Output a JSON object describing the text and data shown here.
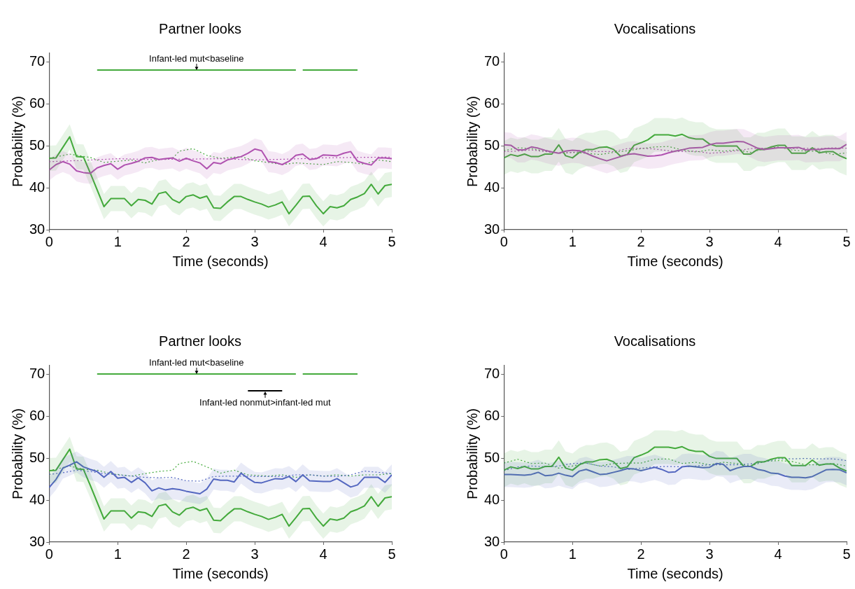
{
  "chart_data": [
    {
      "type": "line",
      "title": "Partner looks",
      "xlabel": "Time (seconds)",
      "ylabel": "Probability (%)",
      "marker": "none",
      "xlim": [
        0,
        5
      ],
      "ylim": [
        30,
        72
      ],
      "xticks": [
        0,
        1,
        2,
        3,
        4,
        5
      ],
      "yticks": [
        30,
        40,
        50,
        60,
        70
      ],
      "x": [
        0,
        0.1,
        0.2,
        0.3,
        0.4,
        0.5,
        0.6,
        0.7,
        0.8,
        0.9,
        1,
        1.1,
        1.2,
        1.3,
        1.4,
        1.5,
        1.6,
        1.7,
        1.8,
        1.9,
        2,
        2.1,
        2.2,
        2.3,
        2.4,
        2.5,
        2.6,
        2.7,
        2.8,
        2.9,
        3,
        3.1,
        3.2,
        3.3,
        3.4,
        3.5,
        3.6,
        3.7,
        3.8,
        3.9,
        4,
        4.1,
        4.2,
        4.3,
        4.4,
        4.5,
        4.6,
        4.7,
        4.8,
        4.9,
        5
      ],
      "series": [
        {
          "type": "line",
          "color": "#b052b0",
          "line_style": "solid",
          "values": [
            44.2,
            45.5,
            46.2,
            45.6,
            44.0,
            43.6,
            43.4,
            44.7,
            45.3,
            45.7,
            44.4,
            45.4,
            45.8,
            46.3,
            47.1,
            47.2,
            46.7,
            46.9,
            47.1,
            46.3,
            47.0,
            46.4,
            45.9,
            44.5,
            46.0,
            45.7,
            46.6,
            47.0,
            47.4,
            48.2,
            49.2,
            48.8,
            46.2,
            46.0,
            45.5,
            46.3,
            47.7,
            48.0,
            46.7,
            46.9,
            47.8,
            47.7,
            47.6,
            48.2,
            48.6,
            46.3,
            45.8,
            45.4,
            47.1,
            47.1,
            46.9
          ],
          "lower": [
            41.7,
            43.0,
            43.7,
            43.1,
            41.5,
            41.1,
            40.9,
            42.2,
            42.8,
            43.2,
            41.9,
            42.9,
            43.3,
            43.8,
            44.6,
            44.7,
            44.2,
            44.4,
            44.6,
            43.8,
            44.5,
            43.9,
            43.4,
            42.0,
            43.5,
            43.2,
            44.1,
            44.5,
            44.9,
            45.7,
            46.7,
            46.3,
            43.7,
            43.5,
            43.0,
            43.8,
            45.2,
            45.5,
            44.2,
            44.4,
            45.3,
            45.2,
            45.1,
            45.7,
            46.1,
            43.8,
            43.3,
            42.9,
            44.6,
            44.6,
            44.4
          ],
          "upper": [
            46.7,
            48.0,
            48.7,
            48.1,
            46.5,
            46.1,
            45.9,
            47.2,
            47.8,
            48.2,
            46.9,
            47.9,
            48.3,
            48.8,
            49.6,
            49.7,
            49.2,
            49.4,
            49.6,
            48.8,
            49.5,
            48.9,
            48.4,
            47.0,
            48.5,
            48.2,
            49.1,
            49.5,
            49.9,
            50.7,
            51.7,
            51.3,
            48.7,
            48.5,
            48.0,
            48.8,
            50.2,
            50.5,
            49.2,
            49.4,
            50.3,
            50.2,
            50.1,
            50.7,
            51.1,
            48.8,
            48.3,
            47.9,
            49.6,
            49.6,
            49.4
          ]
        },
        {
          "type": "line",
          "color": "#44aa3c",
          "line_style": "solid",
          "values": [
            47.0,
            47.1,
            49.6,
            52.1,
            47.4,
            47.3,
            43.5,
            39.5,
            35.5,
            37.4,
            37.4,
            37.4,
            35.7,
            37.2,
            37.0,
            36.1,
            38.6,
            39.0,
            37.2,
            36.4,
            37.9,
            38.3,
            37.5,
            38.0,
            35.2,
            35.1,
            36.6,
            37.9,
            37.9,
            37.2,
            36.6,
            36.1,
            35.4,
            35.9,
            36.6,
            33.8,
            35.8,
            37.9,
            38.0,
            35.7,
            33.8,
            35.5,
            35.2,
            35.7,
            37.2,
            37.8,
            38.6,
            40.8,
            38.5,
            40.5,
            40.8
          ],
          "lower": [
            44.0,
            44.1,
            46.6,
            49.1,
            44.4,
            44.3,
            40.5,
            36.5,
            32.5,
            34.4,
            34.4,
            34.4,
            32.7,
            34.2,
            34.0,
            33.1,
            35.6,
            36.0,
            34.2,
            33.4,
            34.9,
            35.3,
            34.5,
            35.0,
            32.2,
            32.1,
            33.6,
            34.9,
            34.9,
            34.2,
            33.6,
            33.1,
            32.4,
            32.9,
            33.6,
            30.8,
            32.8,
            34.9,
            35.0,
            32.7,
            30.8,
            32.5,
            32.2,
            32.7,
            34.2,
            34.8,
            35.6,
            37.8,
            35.5,
            37.5,
            37.8
          ],
          "upper": [
            50.0,
            50.1,
            52.6,
            55.1,
            50.4,
            50.3,
            46.5,
            42.5,
            38.5,
            40.4,
            40.4,
            40.4,
            38.7,
            40.2,
            40.0,
            39.1,
            41.6,
            42.0,
            40.2,
            39.4,
            40.9,
            41.3,
            40.5,
            41.0,
            38.2,
            38.1,
            39.6,
            40.9,
            40.9,
            40.2,
            39.6,
            39.1,
            38.4,
            38.9,
            39.6,
            36.8,
            38.8,
            40.9,
            41.0,
            38.7,
            36.8,
            38.5,
            38.2,
            38.7,
            40.2,
            40.8,
            41.6,
            43.8,
            41.5,
            43.5,
            43.8
          ]
        },
        {
          "type": "line",
          "color": "#b052b0",
          "line_style": "dotted",
          "x": [
            0,
            0.5,
            1,
            1.5,
            2,
            2.5,
            3,
            3.5,
            4,
            4.5,
            5
          ],
          "values": [
            46.2,
            46.5,
            46.9,
            46.7,
            46.8,
            46.9,
            46.6,
            46.8,
            47.1,
            47.2,
            47.3
          ]
        },
        {
          "type": "line",
          "color": "#44aa3c",
          "line_style": "dotted",
          "x": [
            0,
            0.3,
            0.6,
            0.8,
            1.2,
            1.4,
            1.6,
            1.8,
            1.9,
            2.1,
            2.3,
            2.5,
            2.8,
            3,
            3.2,
            3.4,
            3.6,
            3.8,
            4,
            4.2,
            4.4,
            4.6,
            4.8,
            5
          ],
          "values": [
            47.0,
            48.0,
            47.2,
            46.0,
            46.6,
            45.9,
            46.7,
            47.0,
            48.7,
            49.3,
            47.7,
            47.0,
            47.4,
            46.4,
            46.0,
            45.5,
            45.9,
            45.7,
            45.5,
            46.2,
            46.0,
            45.6,
            46.6,
            46.2
          ]
        },
        {
          "type": "line",
          "name": "Infant-led mut<baseline",
          "color": "#44aa3c",
          "line_style": "solid",
          "x": [
            0.7,
            3.6,
            3.65,
            3.7,
            4.5
          ],
          "values": [
            68,
            68,
            null,
            68,
            68
          ]
        }
      ]
    },
    {
      "type": "line",
      "title": "Vocalisations",
      "xlabel": "Time (seconds)",
      "ylabel": "Probability (%)",
      "marker": "none",
      "xlim": [
        0,
        5
      ],
      "ylim": [
        30,
        72
      ],
      "xticks": [
        0,
        1,
        2,
        3,
        4,
        5
      ],
      "yticks": [
        30,
        40,
        50,
        60,
        70
      ],
      "x": [
        0,
        0.1,
        0.2,
        0.3,
        0.4,
        0.5,
        0.6,
        0.7,
        0.8,
        0.9,
        1,
        1.1,
        1.2,
        1.3,
        1.4,
        1.5,
        1.6,
        1.7,
        1.8,
        1.9,
        2,
        2.1,
        2.2,
        2.3,
        2.4,
        2.5,
        2.6,
        2.7,
        2.8,
        2.9,
        3,
        3.1,
        3.2,
        3.3,
        3.4,
        3.5,
        3.6,
        3.7,
        3.8,
        3.9,
        4,
        4.1,
        4.2,
        4.3,
        4.4,
        4.5,
        4.6,
        4.7,
        4.8,
        4.9,
        5
      ],
      "series": [
        {
          "type": "line",
          "color": "#b052b0",
          "line_style": "solid",
          "values": [
            50.2,
            50.1,
            49.0,
            49.0,
            49.7,
            49.4,
            48.9,
            48.5,
            48.2,
            48.7,
            48.9,
            48.8,
            48.2,
            47.5,
            46.9,
            46.4,
            46.9,
            47.4,
            47.9,
            48.1,
            47.8,
            47.5,
            47.6,
            47.8,
            48.3,
            48.7,
            49.0,
            49.4,
            49.5,
            49.6,
            50.2,
            50.6,
            50.6,
            50.8,
            51.0,
            50.9,
            50.2,
            49.4,
            49.1,
            49.3,
            49.5,
            49.5,
            49.5,
            49.6,
            49.0,
            49.1,
            49.1,
            49.3,
            49.3,
            49.3,
            50.3
          ],
          "lower": [
            47.2,
            47.1,
            46.0,
            46.0,
            46.7,
            46.4,
            45.9,
            45.5,
            45.2,
            45.7,
            45.9,
            45.8,
            45.2,
            44.5,
            43.9,
            43.4,
            43.9,
            44.4,
            44.9,
            45.1,
            44.8,
            44.5,
            44.6,
            44.8,
            45.3,
            45.7,
            46.0,
            46.4,
            46.5,
            46.6,
            47.2,
            47.6,
            47.6,
            47.8,
            48.0,
            47.9,
            47.2,
            46.4,
            46.1,
            46.3,
            46.5,
            46.5,
            46.5,
            46.6,
            46.0,
            46.1,
            46.1,
            46.3,
            46.3,
            46.3,
            47.3
          ],
          "upper": [
            53.2,
            53.1,
            52.0,
            52.0,
            52.7,
            52.4,
            51.9,
            51.5,
            51.2,
            51.7,
            51.9,
            51.8,
            51.2,
            50.5,
            49.9,
            49.4,
            49.9,
            50.4,
            50.9,
            51.1,
            50.8,
            50.5,
            50.6,
            50.8,
            51.3,
            51.7,
            52.0,
            52.4,
            52.5,
            52.6,
            53.2,
            53.6,
            53.6,
            53.8,
            54.0,
            53.9,
            53.2,
            52.4,
            52.1,
            52.3,
            52.5,
            52.5,
            52.5,
            52.6,
            52.0,
            52.1,
            52.1,
            52.3,
            52.3,
            52.3,
            53.3
          ]
        },
        {
          "type": "line",
          "color": "#44aa3c",
          "line_style": "solid",
          "values": [
            47.1,
            47.9,
            47.5,
            48.0,
            47.4,
            47.4,
            48.0,
            48.0,
            50.2,
            47.6,
            47.1,
            48.4,
            49.1,
            49.1,
            49.6,
            49.7,
            49.1,
            47.5,
            47.9,
            50.1,
            50.7,
            51.4,
            52.6,
            52.6,
            52.6,
            52.3,
            52.7,
            51.9,
            51.6,
            51.6,
            50.4,
            49.9,
            49.9,
            49.9,
            49.9,
            48.0,
            48.0,
            49.1,
            49.1,
            49.7,
            50.1,
            50.1,
            48.2,
            48.2,
            48.2,
            49.5,
            48.3,
            48.6,
            48.6,
            47.6,
            46.9
          ],
          "lower": [
            43.1,
            43.9,
            43.5,
            44.0,
            43.4,
            43.4,
            44.0,
            44.0,
            46.2,
            43.6,
            43.1,
            44.4,
            45.1,
            45.1,
            45.6,
            45.7,
            45.1,
            43.5,
            43.9,
            46.1,
            46.7,
            47.4,
            48.6,
            48.6,
            48.6,
            48.3,
            48.7,
            47.9,
            47.6,
            47.6,
            46.4,
            45.9,
            45.9,
            45.9,
            45.9,
            44.0,
            44.0,
            45.1,
            45.1,
            45.7,
            46.1,
            46.1,
            44.2,
            44.2,
            44.2,
            45.5,
            44.3,
            44.6,
            44.6,
            43.6,
            42.9
          ],
          "upper": [
            51.1,
            51.9,
            51.5,
            52.0,
            51.4,
            51.4,
            52.0,
            52.0,
            54.2,
            51.6,
            51.1,
            52.4,
            53.1,
            53.1,
            53.6,
            53.7,
            53.1,
            51.5,
            51.9,
            54.1,
            54.7,
            55.4,
            56.6,
            56.6,
            56.6,
            56.3,
            56.7,
            55.9,
            55.6,
            55.6,
            54.4,
            53.9,
            53.9,
            53.9,
            53.9,
            52.0,
            52.0,
            53.1,
            53.1,
            53.7,
            54.1,
            54.1,
            52.2,
            52.2,
            52.2,
            53.5,
            52.3,
            52.6,
            52.6,
            51.6,
            50.9
          ]
        },
        {
          "type": "line",
          "color": "#b052b0",
          "line_style": "dotted",
          "x": [
            0,
            0.2,
            0.4,
            0.6,
            0.8,
            1,
            1.2,
            1.4,
            1.6,
            1.8,
            2,
            2.2,
            2.4,
            2.6,
            2.8,
            3,
            3.2,
            3.4,
            3.6,
            3.8,
            4,
            4.2,
            4.4,
            4.6,
            4.8,
            5
          ],
          "values": [
            48.6,
            48.7,
            49.0,
            48.6,
            48.2,
            48.4,
            48.7,
            48.6,
            48.6,
            49.3,
            49.4,
            49.2,
            48.8,
            48.6,
            48.7,
            48.2,
            48.4,
            48.8,
            49.3,
            49.4,
            49.5,
            49.3,
            49.4,
            49.3,
            49.5,
            49.4
          ]
        },
        {
          "type": "line",
          "color": "#44aa3c",
          "line_style": "dotted",
          "x": [
            0,
            0.2,
            0.4,
            0.6,
            0.8,
            1,
            1.2,
            1.4,
            1.6,
            1.8,
            2,
            2.2,
            2.4,
            2.6,
            2.8,
            3,
            3.2,
            3.4,
            3.6,
            3.8,
            4,
            4.2,
            4.4,
            4.6,
            4.8,
            5
          ],
          "values": [
            48.8,
            49.5,
            49.3,
            48.7,
            48.2,
            48.4,
            48.2,
            47.9,
            48.4,
            48.8,
            49.3,
            49.7,
            49.8,
            49.0,
            48.5,
            49.0,
            48.7,
            49.0,
            48.4,
            49.3,
            49.7,
            49.0,
            48.7,
            48.7,
            47.9,
            48.3
          ]
        }
      ]
    },
    {
      "type": "line",
      "title": "Partner looks",
      "xlabel": "Time (seconds)",
      "ylabel": "Probability (%)",
      "marker": "none",
      "xlim": [
        0,
        5
      ],
      "ylim": [
        30,
        72
      ],
      "xticks": [
        0,
        1,
        2,
        3,
        4,
        5
      ],
      "yticks": [
        30,
        40,
        50,
        60,
        70
      ],
      "x": [
        0,
        0.1,
        0.2,
        0.3,
        0.4,
        0.5,
        0.6,
        0.7,
        0.8,
        0.9,
        1,
        1.1,
        1.2,
        1.3,
        1.4,
        1.5,
        1.6,
        1.7,
        1.8,
        1.9,
        2,
        2.1,
        2.2,
        2.3,
        2.4,
        2.5,
        2.6,
        2.7,
        2.8,
        2.9,
        3,
        3.1,
        3.2,
        3.3,
        3.4,
        3.5,
        3.6,
        3.7,
        3.8,
        3.9,
        4,
        4.1,
        4.2,
        4.3,
        4.4,
        4.5,
        4.6,
        4.7,
        4.8,
        4.9,
        5
      ],
      "series": [
        {
          "type": "line",
          "color": "#5468c0",
          "line_style": "solid",
          "values": [
            43.0,
            44.9,
            47.6,
            48.3,
            49.1,
            47.9,
            47.3,
            46.8,
            45.4,
            46.8,
            45.2,
            45.4,
            44.2,
            45.3,
            44.1,
            42.2,
            42.9,
            42.4,
            42.7,
            42.5,
            42.1,
            41.8,
            41.5,
            42.6,
            45.0,
            44.7,
            44.7,
            44.3,
            46.4,
            45.2,
            44.2,
            44.1,
            44.6,
            45.1,
            45.0,
            45.6,
            44.4,
            46.0,
            44.6,
            44.5,
            44.4,
            44.4,
            45.1,
            44.1,
            43.1,
            43.6,
            45.4,
            45.4,
            45.4,
            44.2,
            46.0
          ],
          "lower": [
            40.5,
            42.4,
            45.1,
            45.8,
            46.6,
            45.4,
            44.8,
            44.3,
            42.9,
            44.3,
            42.7,
            42.9,
            41.7,
            42.8,
            41.6,
            39.7,
            40.4,
            39.9,
            40.2,
            40.0,
            39.6,
            39.3,
            39.0,
            40.1,
            42.5,
            42.2,
            42.2,
            41.8,
            43.9,
            42.7,
            41.7,
            41.6,
            42.1,
            42.6,
            42.5,
            43.1,
            41.9,
            43.5,
            42.1,
            42.0,
            41.9,
            41.9,
            42.6,
            41.6,
            40.6,
            41.1,
            42.9,
            42.9,
            42.9,
            41.7,
            43.5
          ],
          "upper": [
            45.5,
            47.4,
            50.1,
            50.8,
            51.6,
            50.4,
            49.8,
            49.3,
            47.9,
            49.3,
            47.7,
            47.9,
            46.7,
            47.8,
            46.6,
            44.7,
            45.4,
            44.9,
            45.2,
            45.0,
            44.6,
            44.3,
            44.0,
            45.1,
            47.5,
            47.2,
            47.2,
            46.8,
            48.9,
            47.7,
            46.7,
            46.6,
            47.1,
            47.6,
            47.5,
            48.1,
            46.9,
            48.5,
            47.1,
            47.0,
            46.9,
            46.9,
            47.6,
            46.6,
            45.6,
            46.1,
            47.9,
            47.9,
            47.9,
            46.7,
            48.5
          ]
        },
        {
          "type": "line",
          "color": "#44aa3c",
          "line_style": "solid",
          "values": [
            47.0,
            47.1,
            49.6,
            52.1,
            47.4,
            47.3,
            43.5,
            39.5,
            35.5,
            37.4,
            37.4,
            37.4,
            35.7,
            37.2,
            37.0,
            36.1,
            38.6,
            39.0,
            37.2,
            36.4,
            37.9,
            38.3,
            37.5,
            38.0,
            35.2,
            35.1,
            36.6,
            37.9,
            37.9,
            37.2,
            36.6,
            36.1,
            35.4,
            35.9,
            36.6,
            33.8,
            35.8,
            37.9,
            38.0,
            35.7,
            33.8,
            35.5,
            35.2,
            35.7,
            37.2,
            37.8,
            38.6,
            40.8,
            38.5,
            40.5,
            40.8
          ],
          "lower": [
            44.0,
            44.1,
            46.6,
            49.1,
            44.4,
            44.3,
            40.5,
            36.5,
            32.5,
            34.4,
            34.4,
            34.4,
            32.7,
            34.2,
            34.0,
            33.1,
            35.6,
            36.0,
            34.2,
            33.4,
            34.9,
            35.3,
            34.5,
            35.0,
            32.2,
            32.1,
            33.6,
            34.9,
            34.9,
            34.2,
            33.6,
            33.1,
            32.4,
            32.9,
            33.6,
            30.8,
            32.8,
            34.9,
            35.0,
            32.7,
            30.8,
            32.5,
            32.2,
            32.7,
            34.2,
            34.8,
            35.6,
            37.8,
            35.5,
            37.5,
            37.8
          ],
          "upper": [
            50.0,
            50.1,
            52.6,
            55.1,
            50.4,
            50.3,
            46.5,
            42.5,
            38.5,
            40.4,
            40.4,
            40.4,
            38.7,
            40.2,
            40.0,
            39.1,
            41.6,
            42.0,
            40.2,
            39.4,
            40.9,
            41.3,
            40.5,
            41.0,
            38.2,
            38.1,
            39.6,
            40.9,
            40.9,
            40.2,
            39.6,
            39.1,
            38.4,
            38.9,
            39.6,
            36.8,
            38.8,
            40.9,
            41.0,
            38.7,
            36.8,
            38.5,
            38.2,
            38.7,
            40.2,
            40.8,
            41.6,
            43.8,
            41.5,
            43.5,
            43.8
          ]
        },
        {
          "type": "line",
          "color": "#5468c0",
          "line_style": "dotted",
          "x": [
            0,
            0.2,
            0.4,
            0.6,
            0.8,
            1,
            1.2,
            1.4,
            1.6,
            1.8,
            2,
            2.2,
            2.4,
            2.6,
            2.8,
            3,
            3.2,
            3.4,
            3.6,
            3.8,
            4,
            4.2,
            4.4,
            4.6,
            4.8,
            5
          ],
          "values": [
            46.1,
            46.5,
            47.1,
            46.8,
            46.3,
            46.0,
            45.7,
            45.4,
            45.3,
            45.4,
            44.6,
            44.5,
            45.6,
            45.7,
            45.7,
            45.6,
            45.6,
            45.6,
            46.0,
            46.0,
            45.7,
            45.6,
            46.0,
            46.9,
            46.6,
            46.3
          ]
        },
        {
          "type": "line",
          "color": "#44aa3c",
          "line_style": "dotted",
          "x": [
            0,
            0.3,
            0.5,
            0.7,
            0.9,
            1.2,
            1.4,
            1.6,
            1.8,
            1.9,
            2.1,
            2.3,
            2.5,
            2.7,
            2.9,
            3.2,
            3.4,
            3.6,
            3.8,
            4,
            4.2,
            4.4,
            4.6,
            4.8,
            5
          ],
          "values": [
            47.0,
            48.1,
            47.3,
            47.1,
            46.3,
            45.7,
            46.3,
            46.8,
            47.1,
            48.7,
            49.2,
            47.9,
            46.4,
            47.1,
            46.0,
            45.7,
            46.0,
            45.4,
            46.0,
            45.7,
            46.0,
            45.7,
            46.0,
            46.0,
            46.3
          ]
        },
        {
          "type": "line",
          "name": "Infant-led mut<baseline",
          "color": "#44aa3c",
          "line_style": "solid",
          "x": [
            0.7,
            3.6,
            3.65,
            3.7,
            4.5
          ],
          "values": [
            70,
            70,
            null,
            70,
            70
          ]
        },
        {
          "type": "line",
          "name": "Infant-led nonmut>infant-led mut",
          "color": "#000000",
          "line_style": "solid",
          "x": [
            2.9,
            3.4
          ],
          "values": [
            66,
            66
          ]
        }
      ]
    },
    {
      "type": "line",
      "title": "Vocalisations",
      "xlabel": "Time (seconds)",
      "ylabel": "Probability (%)",
      "marker": "none",
      "xlim": [
        0,
        5
      ],
      "ylim": [
        30,
        72
      ],
      "xticks": [
        0,
        1,
        2,
        3,
        4,
        5
      ],
      "yticks": [
        30,
        40,
        50,
        60,
        70
      ],
      "x": [
        0,
        0.1,
        0.2,
        0.3,
        0.4,
        0.5,
        0.6,
        0.7,
        0.8,
        0.9,
        1,
        1.1,
        1.2,
        1.3,
        1.4,
        1.5,
        1.6,
        1.7,
        1.8,
        1.9,
        2,
        2.1,
        2.2,
        2.3,
        2.4,
        2.5,
        2.6,
        2.7,
        2.8,
        2.9,
        3,
        3.1,
        3.2,
        3.3,
        3.4,
        3.5,
        3.6,
        3.7,
        3.8,
        3.9,
        4,
        4.1,
        4.2,
        4.3,
        4.4,
        4.5,
        4.6,
        4.7,
        4.8,
        4.9,
        5
      ],
      "series": [
        {
          "type": "line",
          "color": "#5468c0",
          "line_style": "solid",
          "values": [
            46.1,
            46.1,
            46.0,
            45.9,
            46.1,
            46.6,
            45.8,
            45.9,
            46.4,
            45.9,
            45.6,
            46.9,
            47.3,
            46.7,
            46.1,
            46.2,
            46.6,
            47.0,
            47.5,
            47.4,
            47.0,
            47.4,
            47.8,
            47.3,
            46.6,
            46.7,
            47.9,
            48.1,
            47.9,
            47.7,
            47.8,
            48.7,
            48.5,
            47.0,
            47.6,
            48.0,
            48.0,
            47.3,
            47.0,
            46.4,
            46.3,
            45.7,
            45.4,
            45.4,
            45.3,
            45.6,
            46.4,
            47.2,
            47.3,
            47.2,
            46.5
          ],
          "lower": [
            43.1,
            43.1,
            43.0,
            42.9,
            43.1,
            43.6,
            42.8,
            42.9,
            43.4,
            42.9,
            42.6,
            43.9,
            44.3,
            43.7,
            43.1,
            43.2,
            43.6,
            44.0,
            44.5,
            44.4,
            44.0,
            44.4,
            44.8,
            44.3,
            43.6,
            43.7,
            44.9,
            45.1,
            44.9,
            44.7,
            44.8,
            45.7,
            45.5,
            44.0,
            44.6,
            45.0,
            45.0,
            44.3,
            44.0,
            43.4,
            43.3,
            42.7,
            42.4,
            42.4,
            42.3,
            42.6,
            43.4,
            44.2,
            44.3,
            44.2,
            43.5
          ],
          "upper": [
            49.1,
            49.1,
            49.0,
            48.9,
            49.1,
            49.6,
            48.8,
            48.9,
            49.4,
            48.9,
            48.6,
            49.9,
            50.3,
            49.7,
            49.1,
            49.2,
            49.6,
            50.0,
            50.5,
            50.4,
            50.0,
            50.4,
            50.8,
            50.3,
            49.6,
            49.7,
            50.9,
            51.1,
            50.9,
            50.7,
            50.8,
            51.7,
            51.5,
            50.0,
            50.6,
            51.0,
            51.0,
            50.3,
            50.0,
            49.4,
            49.3,
            48.7,
            48.4,
            48.4,
            48.3,
            48.6,
            49.4,
            50.2,
            50.3,
            50.2,
            49.5
          ]
        },
        {
          "type": "line",
          "color": "#44aa3c",
          "line_style": "solid",
          "values": [
            47.1,
            47.9,
            47.5,
            48.0,
            47.4,
            47.4,
            48.0,
            48.0,
            50.2,
            47.6,
            47.1,
            48.4,
            49.1,
            49.1,
            49.6,
            49.7,
            49.1,
            47.5,
            47.9,
            50.1,
            50.7,
            51.4,
            52.6,
            52.6,
            52.6,
            52.3,
            52.7,
            51.9,
            51.6,
            51.6,
            50.4,
            49.9,
            49.9,
            49.9,
            49.9,
            48.0,
            48.0,
            49.1,
            49.1,
            49.7,
            50.1,
            50.1,
            48.2,
            48.2,
            48.2,
            49.5,
            48.3,
            48.6,
            48.6,
            47.6,
            46.9
          ],
          "lower": [
            43.1,
            43.9,
            43.5,
            44.0,
            43.4,
            43.4,
            44.0,
            44.0,
            46.2,
            43.6,
            43.1,
            44.4,
            45.1,
            45.1,
            45.6,
            45.7,
            45.1,
            43.5,
            43.9,
            46.1,
            46.7,
            47.4,
            48.6,
            48.6,
            48.6,
            48.3,
            48.7,
            47.9,
            47.6,
            47.6,
            46.4,
            45.9,
            45.9,
            45.9,
            45.9,
            44.0,
            44.0,
            45.1,
            45.1,
            45.7,
            46.1,
            46.1,
            44.2,
            44.2,
            44.2,
            45.5,
            44.3,
            44.6,
            44.6,
            43.6,
            42.9
          ],
          "upper": [
            51.1,
            51.9,
            51.5,
            52.0,
            51.4,
            51.4,
            52.0,
            52.0,
            54.2,
            51.6,
            51.1,
            52.4,
            53.1,
            53.1,
            53.6,
            53.7,
            53.1,
            51.5,
            51.9,
            54.1,
            54.7,
            55.4,
            56.6,
            56.6,
            56.6,
            56.3,
            56.7,
            55.9,
            55.6,
            55.6,
            54.4,
            53.9,
            53.9,
            53.9,
            53.9,
            52.0,
            52.0,
            53.1,
            53.1,
            53.7,
            54.1,
            54.1,
            52.2,
            52.2,
            52.2,
            53.5,
            52.3,
            52.6,
            52.6,
            51.6,
            50.9
          ]
        },
        {
          "type": "line",
          "color": "#5468c0",
          "line_style": "dotted",
          "x": [
            0,
            0.2,
            0.4,
            0.6,
            0.8,
            1,
            1.2,
            1.4,
            1.6,
            1.8,
            2,
            2.2,
            2.4,
            2.6,
            2.8,
            3,
            3.2,
            3.4,
            3.6,
            3.8,
            4,
            4.2,
            4.4,
            4.6,
            4.8,
            5
          ],
          "values": [
            47.0,
            47.9,
            48.1,
            47.9,
            48.1,
            48.7,
            48.8,
            48.1,
            47.9,
            47.3,
            47.6,
            47.9,
            48.0,
            47.9,
            48.1,
            48.4,
            48.4,
            48.4,
            48.6,
            49.1,
            49.8,
            49.8,
            49.9,
            49.8,
            49.8,
            49.4
          ]
        },
        {
          "type": "line",
          "color": "#44aa3c",
          "line_style": "dotted",
          "x": [
            0,
            0.2,
            0.4,
            0.6,
            0.8,
            1,
            1.2,
            1.4,
            1.6,
            1.8,
            2,
            2.2,
            2.4,
            2.6,
            2.8,
            3,
            3.2,
            3.4,
            3.6,
            3.8,
            4,
            4.2,
            4.4,
            4.6,
            4.8,
            5
          ],
          "values": [
            48.8,
            49.7,
            48.7,
            48.8,
            47.6,
            48.1,
            48.8,
            48.1,
            48.7,
            48.8,
            48.8,
            49.7,
            49.8,
            48.7,
            49.0,
            48.4,
            49.0,
            48.7,
            48.1,
            49.2,
            49.4,
            49.2,
            48.4,
            48.4,
            48.7,
            48.1
          ]
        }
      ]
    }
  ]
}
